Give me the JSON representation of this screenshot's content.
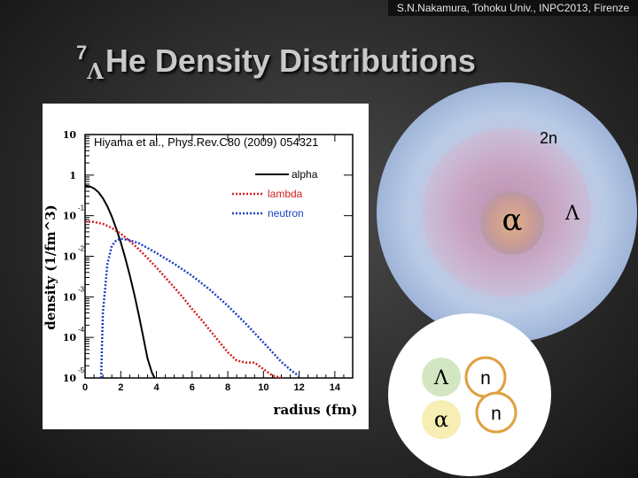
{
  "header": {
    "credit": "S.N.Nakamura, Tohoku Univ., INPC2013, Firenze"
  },
  "slide": {
    "title_mass": "7",
    "title_lambda": "Λ",
    "title_rest": "He Density Distributions"
  },
  "chart_data": {
    "type": "line",
    "title": "",
    "annotation": "Hiyama et al., Phys.Rev.C80 (2009) 054321",
    "xlabel": "radius (fm)",
    "ylabel": "density (1/fm^3)",
    "xlim": [
      0,
      15
    ],
    "ylim_log10": [
      -5,
      1
    ],
    "yscale": "log",
    "x_ticks": [
      "0",
      "2",
      "4",
      "6",
      "8",
      "10",
      "12",
      "14"
    ],
    "y_ticks": [
      {
        "base": "10",
        "exp": ""
      },
      {
        "base": "1",
        "exp": ""
      },
      {
        "base": "10",
        "exp": "-1"
      },
      {
        "base": "10",
        "exp": "-2"
      },
      {
        "base": "10",
        "exp": "-3"
      },
      {
        "base": "10",
        "exp": "-4"
      },
      {
        "base": "10",
        "exp": "-5"
      }
    ],
    "legend_position": "top-right",
    "series": [
      {
        "name": "alpha",
        "color": "#000000",
        "style": "solid",
        "x": [
          0,
          0.25,
          0.5,
          0.75,
          1.0,
          1.25,
          1.5,
          1.75,
          2.0,
          2.25,
          2.5,
          2.75,
          3.0,
          3.25,
          3.5,
          3.75,
          3.9
        ],
        "y": [
          0.55,
          0.53,
          0.47,
          0.38,
          0.27,
          0.17,
          0.095,
          0.048,
          0.022,
          0.0092,
          0.0035,
          0.0012,
          0.00038,
          0.00011,
          3e-05,
          1.35e-05,
          1e-05
        ]
      },
      {
        "name": "lambda",
        "color": "#d42020",
        "style": "dotted",
        "x": [
          0,
          0.5,
          1,
          1.5,
          2,
          2.5,
          3,
          3.5,
          4,
          4.5,
          5,
          5.5,
          6,
          6.5,
          7,
          7.5,
          8,
          8.5,
          9,
          9.5,
          10,
          10.5,
          11
        ],
        "y": [
          0.072,
          0.07,
          0.063,
          0.05,
          0.036,
          0.024,
          0.015,
          0.009,
          0.0053,
          0.003,
          0.0017,
          0.00095,
          0.0005,
          0.00028,
          0.00015,
          8e-05,
          4.3e-05,
          2.7e-05,
          2.4e-05,
          2.4e-05,
          1.65e-05,
          1.15e-05,
          1e-05
        ]
      },
      {
        "name": "neutron",
        "color": "#1a3fc4",
        "style": "dotted",
        "x": [
          0.9,
          1.0,
          1.25,
          1.5,
          1.75,
          2.0,
          2.5,
          3,
          3.5,
          4,
          5,
          6,
          7,
          8,
          9,
          10,
          11,
          11.5,
          12.0
        ],
        "y": [
          1e-05,
          0.0004,
          0.0065,
          0.018,
          0.025,
          0.027,
          0.025,
          0.021,
          0.016,
          0.012,
          0.0065,
          0.0033,
          0.0015,
          0.0006,
          0.00022,
          7.5e-05,
          2.5e-05,
          1.6e-05,
          1.1e-05
        ]
      }
    ]
  },
  "diagram": {
    "core": "α",
    "outer_lambda": "Λ",
    "halo": "2n"
  },
  "cluster": {
    "lambda": "Λ",
    "alpha": "α",
    "n1": "n",
    "n2": "n"
  }
}
